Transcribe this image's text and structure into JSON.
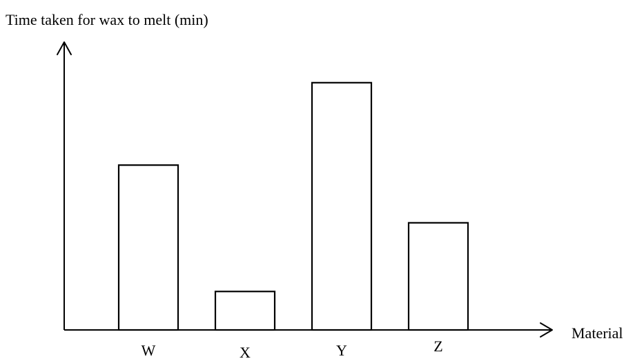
{
  "chart_data": {
    "type": "bar",
    "ylabel": "Time taken for wax to melt (min)",
    "xlabel": "Material",
    "categories": [
      "W",
      "X",
      "Y",
      "Z"
    ],
    "values": [
      6.0,
      1.4,
      9.0,
      3.9
    ],
    "grid": false,
    "y_ticks_shown": false,
    "colors": {
      "bar_fill": "#ffffff",
      "bar_stroke": "#000000",
      "axis": "#000000"
    }
  }
}
